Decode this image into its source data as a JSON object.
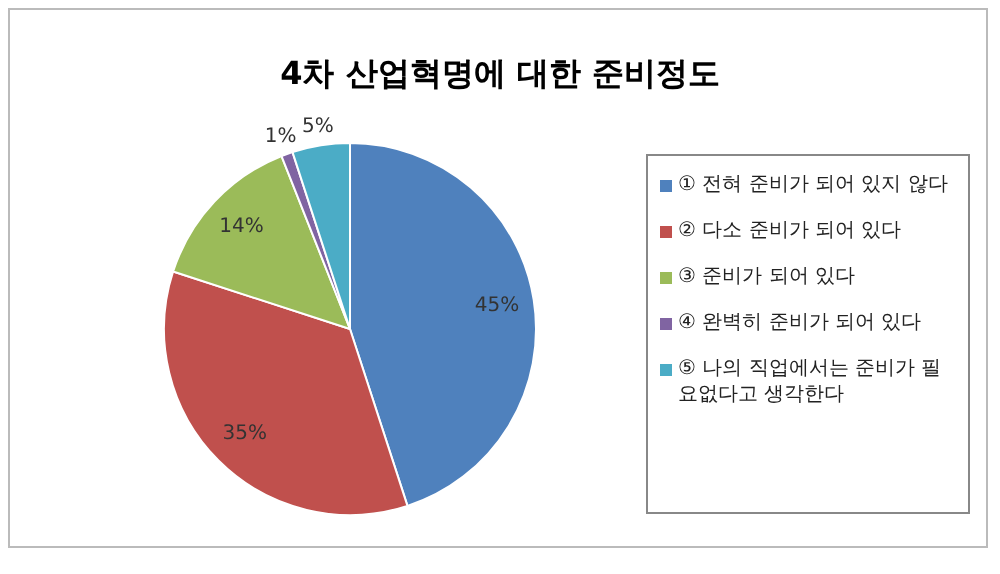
{
  "chart_data": {
    "type": "pie",
    "title": "4차 산업혁명에 대한 준비정도",
    "categories": [
      "① 전혀 준비가 되어 있지 않다",
      "② 다소 준비가 되어 있다",
      "③ 준비가 되어 있다",
      "④ 완벽히 준비가 되어 있다",
      "⑤ 나의 직업에서는 준비가 필요없다고 생각한다"
    ],
    "values": [
      45,
      35,
      14,
      1,
      5
    ],
    "colors": [
      "#4f81bd",
      "#c0504d",
      "#9bbb59",
      "#8064a2",
      "#4bacc6"
    ],
    "value_labels": [
      "45%",
      "35%",
      "14%",
      "1%",
      "5%"
    ],
    "legend": "right"
  }
}
